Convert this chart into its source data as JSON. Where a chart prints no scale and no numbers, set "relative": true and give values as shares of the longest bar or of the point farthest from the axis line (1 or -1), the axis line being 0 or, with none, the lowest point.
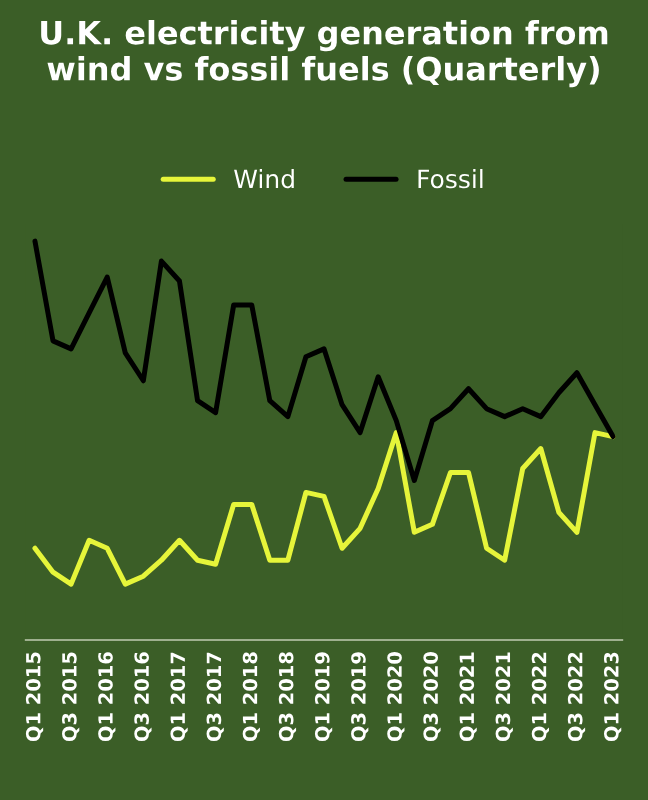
{
  "chart_data": {
    "type": "line",
    "title": "U.K. electricity generation from wind vs fossil fuels (Quarterly)",
    "relative": true,
    "legend": "top",
    "grid": false,
    "marker": "none",
    "line_style": "solid",
    "categories": [
      "Q1 2015",
      null,
      "Q3 2015",
      null,
      "Q1 2016",
      null,
      "Q3 2016",
      null,
      "Q1 2017",
      null,
      "Q3 2017",
      null,
      "Q1 2018",
      null,
      "Q3 2018",
      null,
      "Q1 2019",
      null,
      "Q3 2019",
      null,
      "Q1 2020",
      null,
      "Q3 2020",
      null,
      "Q1 2021",
      null,
      "Q3 2021",
      null,
      "Q1 2022",
      null,
      "Q3 2022",
      null,
      "Q1 2023"
    ],
    "series": [
      {
        "name": "Wind",
        "color": "#e6f53a",
        "values": [
          0.23,
          0.17,
          0.14,
          0.25,
          0.23,
          0.14,
          0.16,
          0.2,
          0.25,
          0.2,
          0.19,
          0.34,
          0.34,
          0.2,
          0.2,
          0.37,
          0.36,
          0.23,
          0.28,
          0.38,
          0.52,
          0.27,
          0.29,
          0.42,
          0.42,
          0.23,
          0.2,
          0.43,
          0.48,
          0.32,
          0.27,
          0.52,
          0.51
        ]
      },
      {
        "name": "Fossil",
        "color": "#000000",
        "values": [
          1.0,
          0.75,
          0.73,
          0.82,
          0.91,
          0.72,
          0.65,
          0.95,
          0.9,
          0.6,
          0.57,
          0.84,
          0.84,
          0.6,
          0.56,
          0.71,
          0.73,
          0.59,
          0.52,
          0.66,
          0.55,
          0.4,
          0.55,
          0.58,
          0.63,
          0.58,
          0.56,
          0.58,
          0.56,
          0.62,
          0.67,
          0.59,
          0.51
        ]
      }
    ]
  }
}
